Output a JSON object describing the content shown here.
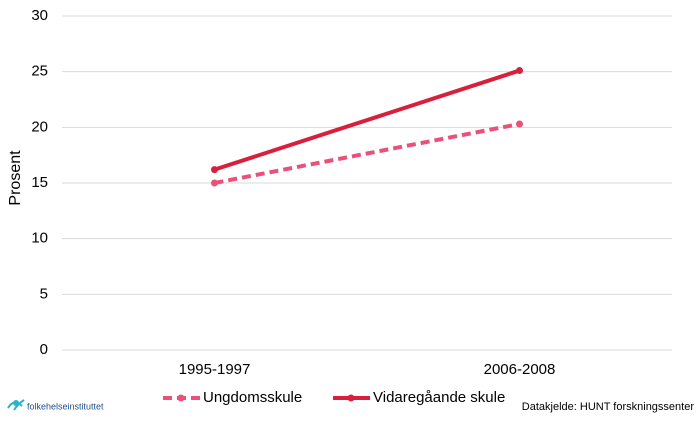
{
  "chart_data": {
    "type": "line",
    "y_label": "Prosent",
    "categories": [
      "1995-1997",
      "2006-2008"
    ],
    "series": [
      {
        "name": "Ungdomsskule",
        "color": "#e9507a",
        "line_style": "dashed",
        "values": [
          15,
          20.3
        ]
      },
      {
        "name": "Vidaregåande skule",
        "color": "#d81f3c",
        "line_style": "solid",
        "values": [
          16.2,
          25.1
        ]
      }
    ],
    "ylim": [
      0,
      30
    ],
    "yticks": [
      0,
      5,
      10,
      15,
      20,
      25,
      30
    ],
    "grid": true,
    "legend": "bottom",
    "source": "Datakjelde: HUNT forskningssenter",
    "logo": "folkehelseinstituttet"
  }
}
